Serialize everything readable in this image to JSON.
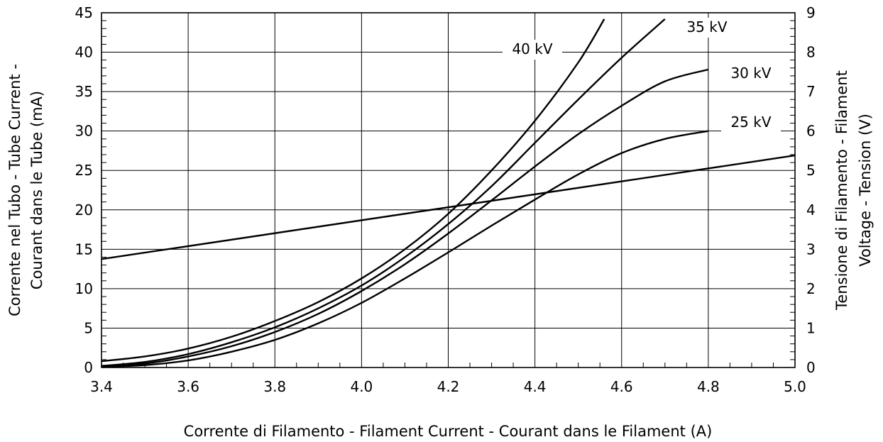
{
  "chart_data": {
    "type": "line",
    "xlabel": "Corrente di Filamento - Filament Current - Courant dans le Filament  (A)",
    "ylabel_left_line1": "Corrente nel Tubo - Tube Current -",
    "ylabel_left_line2": "Courant dans le Tube   (mA)",
    "ylabel_right_line1": "Tensione di Filamento -     Filament",
    "ylabel_right_line2": "Voltage - Tension  (V)",
    "xlim": [
      3.4,
      5.0
    ],
    "ylim_left": [
      0,
      45
    ],
    "ylim_right": [
      0,
      9
    ],
    "grid": true,
    "x_ticks": [
      "3.4",
      "3.6",
      "3.8",
      "4.0",
      "4.2",
      "4.4",
      "4.6",
      "4.8",
      "5.0"
    ],
    "y_left_ticks": [
      "0",
      "5",
      "10",
      "15",
      "20",
      "25",
      "30",
      "35",
      "40",
      "45"
    ],
    "y_right_ticks": [
      "0",
      "1",
      "2",
      "3",
      "4",
      "5",
      "6",
      "7",
      "8",
      "9"
    ],
    "series": [
      {
        "name": "25 kV",
        "axis": "left",
        "x": [
          3.4,
          3.5,
          3.6,
          3.7,
          3.8,
          3.9,
          4.0,
          4.1,
          4.2,
          4.3,
          4.4,
          4.5,
          4.6,
          4.7,
          4.8
        ],
        "y": [
          0.1,
          0.3,
          0.9,
          2.0,
          3.5,
          5.6,
          8.2,
          11.3,
          14.6,
          18.0,
          21.3,
          24.5,
          27.2,
          29.0,
          30.0
        ]
      },
      {
        "name": "30 kV",
        "axis": "left",
        "x": [
          3.4,
          3.5,
          3.6,
          3.7,
          3.8,
          3.9,
          4.0,
          4.1,
          4.2,
          4.3,
          4.4,
          4.5,
          4.6,
          4.7,
          4.8
        ],
        "y": [
          0.2,
          0.5,
          1.4,
          2.7,
          4.5,
          6.8,
          9.7,
          13.1,
          17.0,
          21.2,
          25.5,
          29.6,
          33.2,
          36.3,
          37.8
        ]
      },
      {
        "name": "35 kV",
        "axis": "left",
        "x": [
          3.4,
          3.5,
          3.6,
          3.7,
          3.8,
          3.9,
          4.0,
          4.1,
          4.2,
          4.3,
          4.4,
          4.5,
          4.6,
          4.7
        ],
        "y": [
          0.2,
          0.7,
          1.7,
          3.2,
          5.1,
          7.5,
          10.4,
          14.0,
          18.2,
          23.0,
          28.5,
          34.0,
          39.3,
          44.2
        ]
      },
      {
        "name": "40 kV",
        "axis": "left",
        "x": [
          3.4,
          3.5,
          3.6,
          3.7,
          3.8,
          3.9,
          4.0,
          4.1,
          4.2,
          4.3,
          4.4,
          4.5,
          4.56
        ],
        "y": [
          0.8,
          1.4,
          2.4,
          3.9,
          5.9,
          8.3,
          11.3,
          15.0,
          19.5,
          25.0,
          31.3,
          38.7,
          44.2
        ]
      },
      {
        "name": "Filament Voltage",
        "axis": "right",
        "x": [
          3.4,
          5.0
        ],
        "y": [
          2.75,
          5.38
        ]
      }
    ]
  }
}
